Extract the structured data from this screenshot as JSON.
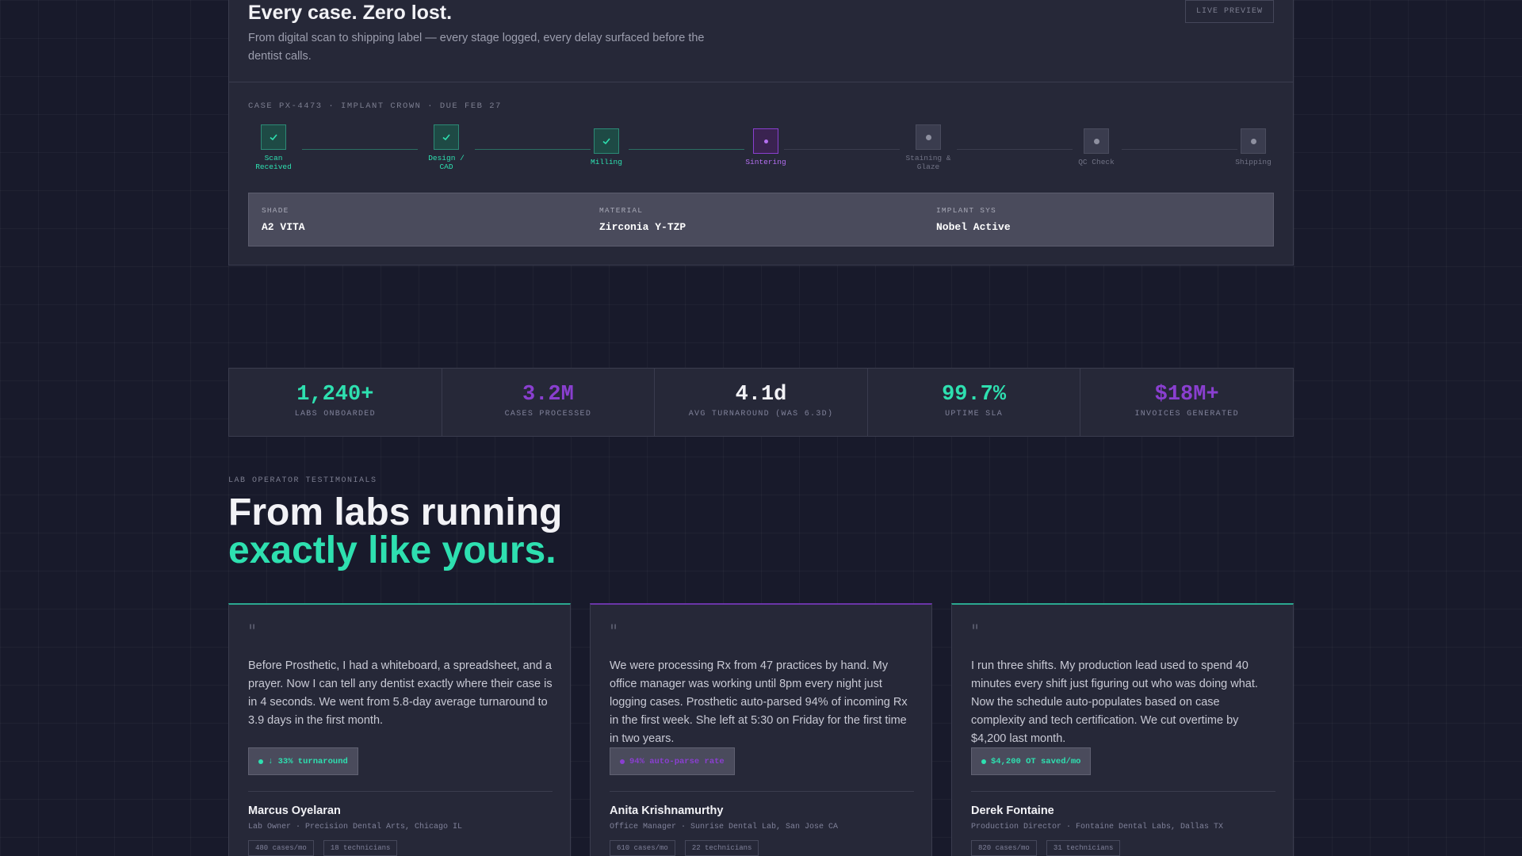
{
  "hero": {
    "title": "Every case. Zero lost.",
    "subtitle": "From digital scan to shipping label — every stage logged, every delay surfaced before the dentist calls.",
    "badge": "LIVE PREVIEW",
    "case_line": "CASE PX-4473 · IMPLANT CROWN · DUE FEB 27"
  },
  "pipeline": {
    "stages": [
      {
        "label": "Scan Received",
        "status": "done"
      },
      {
        "label": "Design / CAD",
        "status": "done"
      },
      {
        "label": "Milling",
        "status": "done"
      },
      {
        "label": "Sintering",
        "status": "active"
      },
      {
        "label": "Staining & Glaze",
        "status": "pending"
      },
      {
        "label": "QC Check",
        "status": "pending"
      },
      {
        "label": "Shipping",
        "status": "pending"
      }
    ]
  },
  "specs": [
    {
      "key": "SHADE",
      "value": "A2 VITA"
    },
    {
      "key": "MATERIAL",
      "value": "Zirconia Y-TZP"
    },
    {
      "key": "IMPLANT SYS",
      "value": "Nobel Active"
    }
  ],
  "stats": [
    {
      "value": "1,240+",
      "label": "LABS ONBOARDED",
      "color": "#2ee0b0"
    },
    {
      "value": "3.2M",
      "label": "CASES PROCESSED",
      "color": "#8a3fd0"
    },
    {
      "value": "4.1d",
      "label": "AVG TURNAROUND (WAS 6.3D)",
      "color": "#f2f2f6"
    },
    {
      "value": "99.7%",
      "label": "UPTIME SLA",
      "color": "#2ee0b0"
    },
    {
      "value": "$18M+",
      "label": "INVOICES GENERATED",
      "color": "#8a3fd0"
    }
  ],
  "testimonials_section": {
    "eyebrow": "LAB OPERATOR TESTIMONIALS",
    "headline_line1": "From labs running",
    "headline_line2": "exactly like yours."
  },
  "testimonials": [
    {
      "quote_mark": "\"",
      "quote": "Before Prosthetic, I had a whiteboard, a spreadsheet, and a prayer. Now I can tell any dentist exactly where their case is in 4 seconds. We went from 5.8-day average turnaround to 3.9 days in the first month.",
      "metric": "↓ 33% turnaround",
      "accent": "green",
      "name": "Marcus Oyelaran",
      "role": "Lab Owner · Precision Dental Arts, Chicago IL",
      "chips": [
        "480 cases/mo",
        "18 technicians"
      ]
    },
    {
      "quote_mark": "\"",
      "quote": "We were processing Rx from 47 practices by hand. My office manager was working until 8pm every night just logging cases. Prosthetic auto-parsed 94% of incoming Rx in the first week. She left at 5:30 on Friday for the first time in two years.",
      "metric": "94% auto-parse rate",
      "accent": "purple",
      "name": "Anita Krishnamurthy",
      "role": "Office Manager · Sunrise Dental Lab, San Jose CA",
      "chips": [
        "610 cases/mo",
        "22 technicians"
      ]
    },
    {
      "quote_mark": "\"",
      "quote": "I run three shifts. My production lead used to spend 40 minutes every shift just figuring out who was doing what. Now the schedule auto-populates based on case complexity and tech certification. We cut overtime by $4,200 last month.",
      "metric": "$4,200 OT saved/mo",
      "accent": "green",
      "name": "Derek Fontaine",
      "role": "Production Director · Fontaine Dental Labs, Dallas TX",
      "chips": [
        "820 cases/mo",
        "31 technicians"
      ]
    }
  ]
}
